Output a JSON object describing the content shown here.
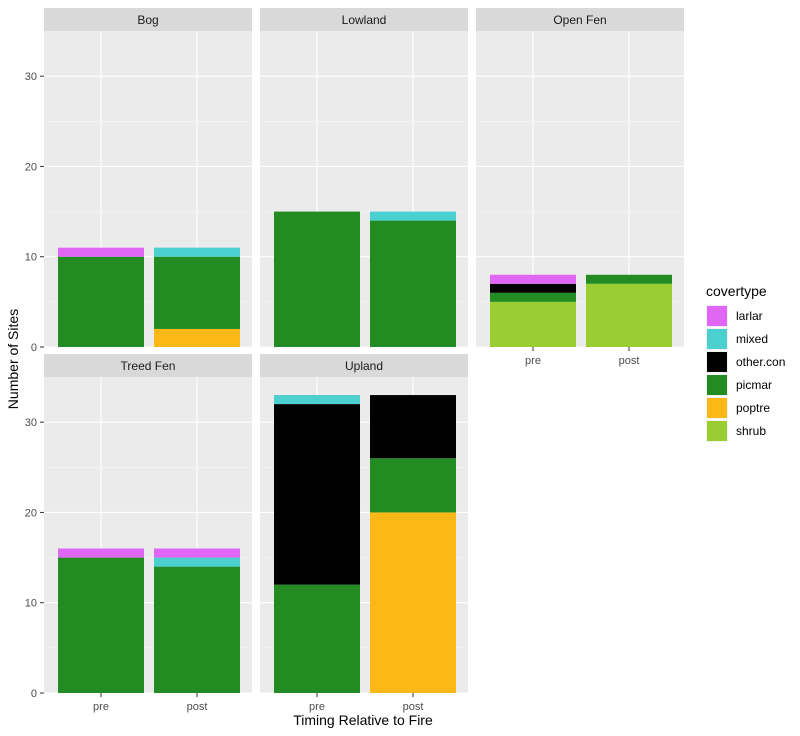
{
  "chart_data": {
    "type": "bar",
    "stacked": true,
    "xlabel": "Timing Relative to Fire",
    "ylabel": "Number of Sites",
    "ylim": [
      0,
      35
    ],
    "yticks": [
      0,
      10,
      20,
      30
    ],
    "categories": [
      "pre",
      "post"
    ],
    "legend": {
      "title": "covertype",
      "placement": "right",
      "items": [
        {
          "name": "larlar",
          "color": "#e066f5"
        },
        {
          "name": "mixed",
          "color": "#4bcfcf"
        },
        {
          "name": "other.con",
          "color": "#000000"
        },
        {
          "name": "picmar",
          "color": "#228b22"
        },
        {
          "name": "poptre",
          "color": "#fbb816"
        },
        {
          "name": "shrub",
          "color": "#9acd32"
        }
      ]
    },
    "stack_order_bottom_to_top": [
      "shrub",
      "poptre",
      "picmar",
      "other.con",
      "mixed",
      "larlar"
    ],
    "panels": [
      {
        "title": "Bog",
        "bars": [
          {
            "category": "pre",
            "values": {
              "picmar": 10,
              "larlar": 1
            }
          },
          {
            "category": "post",
            "values": {
              "poptre": 2,
              "picmar": 8,
              "mixed": 1
            }
          }
        ]
      },
      {
        "title": "Lowland",
        "bars": [
          {
            "category": "pre",
            "values": {
              "picmar": 15
            }
          },
          {
            "category": "post",
            "values": {
              "picmar": 14,
              "mixed": 1
            }
          }
        ]
      },
      {
        "title": "Open Fen",
        "bars": [
          {
            "category": "pre",
            "values": {
              "shrub": 5,
              "picmar": 1,
              "other.con": 1,
              "larlar": 1
            }
          },
          {
            "category": "post",
            "values": {
              "shrub": 7,
              "picmar": 1
            }
          }
        ]
      },
      {
        "title": "Treed Fen",
        "bars": [
          {
            "category": "pre",
            "values": {
              "picmar": 15,
              "larlar": 1
            }
          },
          {
            "category": "post",
            "values": {
              "picmar": 14,
              "mixed": 1,
              "larlar": 1
            }
          }
        ]
      },
      {
        "title": "Upland",
        "bars": [
          {
            "category": "pre",
            "values": {
              "picmar": 12,
              "other.con": 20,
              "mixed": 1
            }
          },
          {
            "category": "post",
            "values": {
              "poptre": 20,
              "picmar": 6,
              "other.con": 7
            }
          }
        ]
      }
    ]
  }
}
